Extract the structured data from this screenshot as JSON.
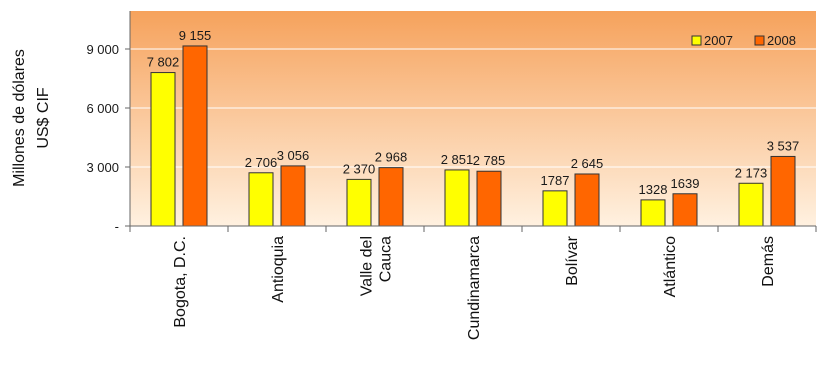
{
  "chart_data": {
    "type": "bar",
    "categories": [
      "Bogota, D.C.",
      "Antioquia",
      "Valle del Cauca",
      "Cundinamarca",
      "Bolívar",
      "Atlántico",
      "Demás"
    ],
    "category_lines": [
      [
        "Bogota, D.C."
      ],
      [
        "Antioquia"
      ],
      [
        "Valle del",
        "Cauca"
      ],
      [
        "Cundinamarca"
      ],
      [
        "Bolívar"
      ],
      [
        "Atlántico"
      ],
      [
        "Demás"
      ]
    ],
    "series": [
      {
        "name": "2007",
        "color": "#ffff00",
        "values": [
          7802,
          2706,
          2370,
          2851,
          1787,
          1328,
          2173
        ],
        "labels": [
          "7 802",
          "2 706",
          "2 370",
          "2 851",
          "1787",
          "1328",
          "2 173"
        ]
      },
      {
        "name": "2008",
        "color": "#ff6600",
        "values": [
          9155,
          3056,
          2968,
          2785,
          2645,
          1639,
          3537
        ],
        "labels": [
          "9 155",
          "3 056",
          "2 968",
          "2 785",
          "2 645",
          "1639",
          "3 537"
        ]
      }
    ],
    "ylabel_lines": [
      "Millones de dólares",
      "US$ CIF"
    ],
    "yticks": [
      0,
      3000,
      6000,
      9000
    ],
    "ytick_labels": [
      "-",
      "3 000",
      "6 000",
      "9 000"
    ],
    "ylim": [
      0,
      11000
    ],
    "legend_position": "top-right",
    "grid": true,
    "plot_gradient": [
      "#f6a25c",
      "#fff1e0"
    ]
  }
}
